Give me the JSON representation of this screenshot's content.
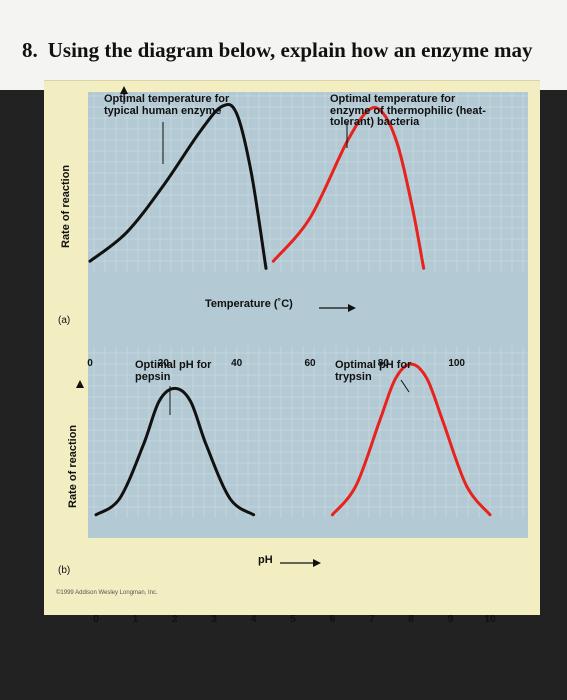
{
  "question": {
    "number": "8.",
    "text": "Using the diagram below, explain how an enzyme may"
  },
  "credit": "©1999 Addison Wesley Longman, Inc.",
  "chart_data": [
    {
      "type": "line",
      "panel_label": "(a)",
      "xlabel": "Temperature (˚C)",
      "ylabel": "Rate of reaction",
      "xlim": [
        0,
        120
      ],
      "xticks": [
        "0",
        "20",
        "40",
        "60",
        "80",
        "100"
      ],
      "annotations": [
        "Optimal temperature for typical human enzyme",
        "Optimal temperature for enzyme of thermophilic (heat-tolerant) bacteria"
      ],
      "series": [
        {
          "color": "#111111",
          "x": [
            0,
            10,
            20,
            30,
            36,
            40,
            44,
            48
          ],
          "y": [
            0.06,
            0.22,
            0.48,
            0.78,
            0.92,
            0.88,
            0.55,
            0.02
          ]
        },
        {
          "color": "#e8221c",
          "x": [
            50,
            60,
            70,
            76,
            80,
            84,
            88,
            91
          ],
          "y": [
            0.06,
            0.3,
            0.72,
            0.9,
            0.88,
            0.7,
            0.35,
            0.02
          ]
        }
      ]
    },
    {
      "type": "line",
      "panel_label": "(b)",
      "xlabel": "pH",
      "ylabel": "Rate of reaction",
      "xlim": [
        0,
        10
      ],
      "xticks": [
        "0",
        "1",
        "2",
        "3",
        "4",
        "5",
        "6",
        "7",
        "8",
        "9",
        "10"
      ],
      "annotations": [
        "Optimal pH for pepsin",
        "Optimal pH for trypsin"
      ],
      "series": [
        {
          "color": "#111111",
          "x": [
            0,
            0.6,
            1.2,
            1.6,
            2,
            2.4,
            2.8,
            3.4,
            4
          ],
          "y": [
            0.02,
            0.12,
            0.45,
            0.72,
            0.8,
            0.72,
            0.45,
            0.12,
            0.02
          ]
        },
        {
          "color": "#e8221c",
          "x": [
            6,
            6.6,
            7.2,
            7.6,
            8,
            8.4,
            8.8,
            9.4,
            10
          ],
          "y": [
            0.02,
            0.2,
            0.6,
            0.86,
            0.95,
            0.86,
            0.6,
            0.2,
            0.02
          ]
        }
      ]
    }
  ]
}
